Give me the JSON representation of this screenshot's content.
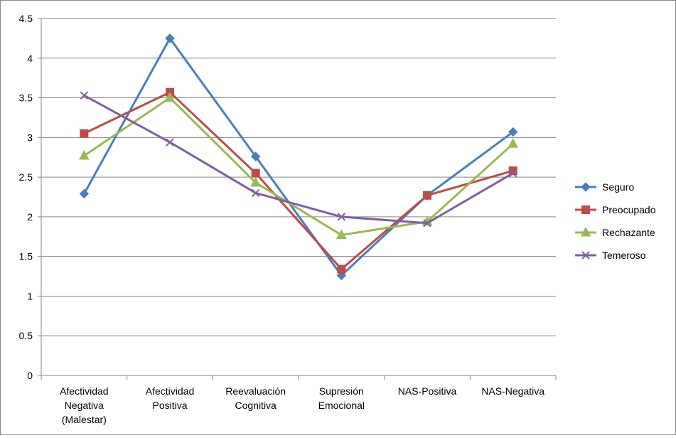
{
  "chart_data": {
    "type": "line",
    "title": "",
    "xlabel": "",
    "ylabel": "",
    "ylim": [
      0,
      4.5
    ],
    "yticks": [
      0,
      0.5,
      1,
      1.5,
      2,
      2.5,
      3,
      3.5,
      4,
      4.5
    ],
    "ytick_labels": [
      "0",
      "0.5",
      "1",
      "1.5",
      "2",
      "2.5",
      "3",
      "3.5",
      "4",
      "4.5"
    ],
    "grid": true,
    "legend_position": "right",
    "categories": [
      [
        "Afectividad",
        "Negativa",
        "(Malestar)"
      ],
      [
        "Afectividad",
        "Positiva"
      ],
      [
        "Reevaluación",
        "Cognitiva"
      ],
      [
        "Supresión",
        "Emocional"
      ],
      [
        "NAS-Positiva"
      ],
      [
        "NAS-Negativa"
      ]
    ],
    "series": [
      {
        "name": "Seguro",
        "color": "#4a7ebb",
        "marker": "diamond",
        "values": [
          2.29,
          4.25,
          2.76,
          1.26,
          2.27,
          3.07
        ]
      },
      {
        "name": "Preocupado",
        "color": "#be4b48",
        "marker": "square",
        "values": [
          3.05,
          3.57,
          2.55,
          1.34,
          2.27,
          2.58
        ]
      },
      {
        "name": "Rechazante",
        "color": "#98b954",
        "marker": "triangle",
        "values": [
          2.77,
          3.5,
          2.43,
          1.77,
          1.94,
          2.92
        ]
      },
      {
        "name": "Temeroso",
        "color": "#7d5fa0",
        "marker": "x",
        "values": [
          3.53,
          2.94,
          2.3,
          2.0,
          1.92,
          2.55
        ]
      }
    ]
  }
}
